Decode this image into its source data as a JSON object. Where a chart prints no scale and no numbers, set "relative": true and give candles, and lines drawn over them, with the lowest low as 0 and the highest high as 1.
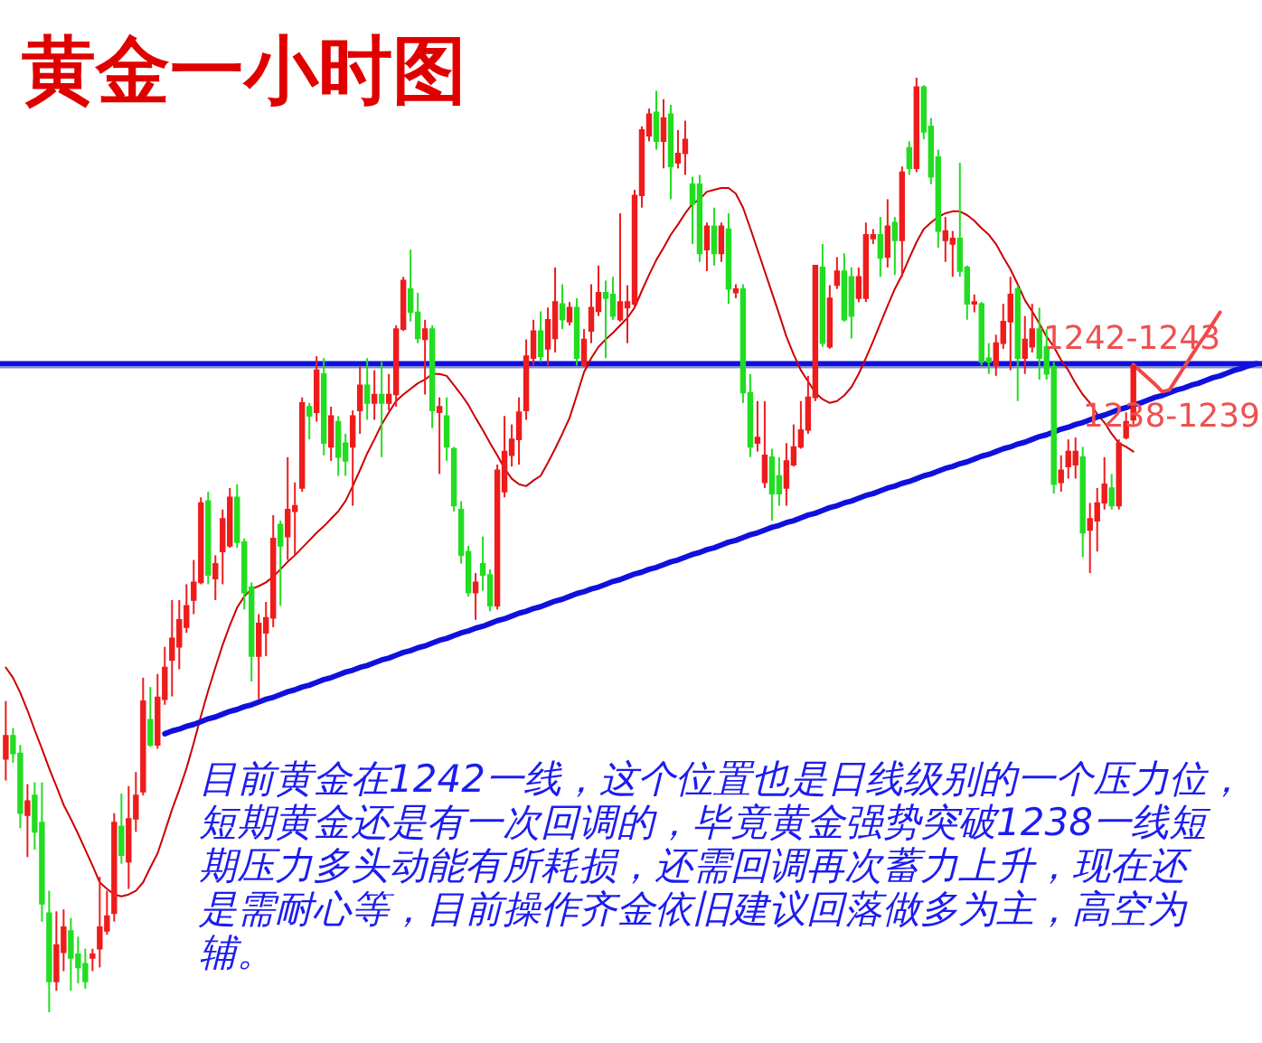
{
  "chart_data": {
    "type": "candlestick",
    "title": "黄金一小时图",
    "relative": true,
    "tick_labels": false,
    "categories": [
      null,
      null,
      null,
      null,
      null,
      null,
      null,
      null,
      null,
      null,
      null,
      null,
      null,
      null,
      null,
      null,
      null,
      null,
      null,
      null,
      null,
      null,
      null,
      null,
      null,
      null,
      null,
      null,
      null,
      null,
      null,
      null,
      null,
      null,
      null,
      null,
      null,
      null,
      null,
      null,
      null,
      null,
      null,
      null,
      null,
      null,
      null,
      null,
      null,
      null,
      null,
      null,
      null,
      null,
      null,
      null,
      null,
      null,
      null,
      null,
      null,
      null,
      null,
      null,
      null,
      null,
      null,
      null,
      null,
      null,
      null,
      null,
      null,
      null,
      null,
      null,
      null,
      null,
      null,
      null,
      null,
      null,
      null,
      null,
      null,
      null,
      null,
      null,
      null,
      null,
      null,
      null,
      null,
      null,
      null,
      null,
      null,
      null,
      null,
      null,
      null,
      null,
      null,
      null,
      null,
      null,
      null,
      null,
      null,
      null,
      null,
      null,
      null,
      null,
      null,
      null,
      null,
      null,
      null,
      null,
      null,
      null,
      null,
      null,
      null,
      null,
      null,
      null,
      null,
      null,
      null,
      null,
      null,
      null,
      null,
      null,
      null,
      null,
      null,
      null,
      null,
      null,
      null,
      null,
      null,
      null,
      null,
      null,
      null,
      null,
      null,
      null,
      null,
      null,
      null,
      null,
      null,
      null,
      null,
      null,
      null,
      null,
      null,
      null,
      null,
      null,
      null,
      null,
      null,
      null,
      null,
      null,
      null,
      null
    ],
    "ohlc": [
      [
        0.271,
        0.333,
        0.248,
        0.296
      ],
      [
        0.296,
        0.304,
        0.267,
        0.277
      ],
      [
        0.277,
        0.286,
        0.197,
        0.213
      ],
      [
        0.211,
        0.244,
        0.166,
        0.226
      ],
      [
        0.232,
        0.246,
        0.174,
        0.193
      ],
      [
        0.203,
        0.246,
        0.097,
        0.116
      ],
      [
        0.106,
        0.13,
        0.0,
        0.033
      ],
      [
        0.033,
        0.108,
        0.023,
        0.072
      ],
      [
        0.064,
        0.11,
        0.044,
        0.091
      ],
      [
        0.087,
        0.101,
        0.023,
        0.058
      ],
      [
        0.062,
        0.081,
        0.031,
        0.048
      ],
      [
        0.052,
        0.068,
        0.025,
        0.033
      ],
      [
        0.058,
        0.068,
        0.044,
        0.062
      ],
      [
        0.068,
        0.145,
        0.048,
        0.091
      ],
      [
        0.087,
        0.13,
        0.083,
        0.103
      ],
      [
        0.106,
        0.213,
        0.097,
        0.203
      ],
      [
        0.199,
        0.234,
        0.159,
        0.168
      ],
      [
        0.161,
        0.242,
        0.132,
        0.207
      ],
      [
        0.207,
        0.257,
        0.193,
        0.232
      ],
      [
        0.236,
        0.358,
        0.232,
        0.333
      ],
      [
        0.313,
        0.348,
        0.284,
        0.286
      ],
      [
        0.286,
        0.362,
        0.282,
        0.337
      ],
      [
        0.335,
        0.391,
        0.329,
        0.369
      ],
      [
        0.377,
        0.441,
        0.338,
        0.4
      ],
      [
        0.391,
        0.441,
        0.367,
        0.42
      ],
      [
        0.412,
        0.458,
        0.406,
        0.435
      ],
      [
        0.441,
        0.484,
        0.426,
        0.46
      ],
      [
        0.46,
        0.551,
        0.458,
        0.545
      ],
      [
        0.547,
        0.557,
        0.458,
        0.468
      ],
      [
        0.464,
        0.489,
        0.441,
        0.48
      ],
      [
        0.493,
        0.538,
        0.458,
        0.528
      ],
      [
        0.499,
        0.561,
        0.497,
        0.551
      ],
      [
        0.551,
        0.565,
        0.497,
        0.503
      ],
      [
        0.503,
        0.507,
        0.431,
        0.449
      ],
      [
        0.455,
        0.46,
        0.354,
        0.381
      ],
      [
        0.381,
        0.426,
        0.335,
        0.416
      ],
      [
        0.406,
        0.439,
        0.381,
        0.422
      ],
      [
        0.422,
        0.532,
        0.412,
        0.507
      ],
      [
        0.522,
        0.526,
        0.435,
        0.499
      ],
      [
        0.509,
        0.594,
        0.484,
        0.538
      ],
      [
        0.536,
        0.567,
        0.489,
        0.542
      ],
      [
        0.561,
        0.658,
        0.557,
        0.652
      ],
      [
        0.648,
        0.652,
        0.613,
        0.638
      ],
      [
        0.642,
        0.702,
        0.632,
        0.687
      ],
      [
        0.683,
        0.7,
        0.596,
        0.609
      ],
      [
        0.605,
        0.648,
        0.59,
        0.638
      ],
      [
        0.632,
        0.638,
        0.574,
        0.594
      ],
      [
        0.609,
        0.619,
        0.574,
        0.59
      ],
      [
        0.605,
        0.644,
        0.542,
        0.638
      ],
      [
        0.644,
        0.691,
        0.619,
        0.671
      ],
      [
        0.671,
        0.7,
        0.634,
        0.652
      ],
      [
        0.652,
        0.687,
        0.634,
        0.661
      ],
      [
        0.661,
        0.696,
        0.594,
        0.652
      ],
      [
        0.652,
        0.683,
        0.644,
        0.661
      ],
      [
        0.661,
        0.735,
        0.648,
        0.731
      ],
      [
        0.731,
        0.787,
        0.729,
        0.783
      ],
      [
        0.774,
        0.816,
        0.739,
        0.749
      ],
      [
        0.749,
        0.77,
        0.716,
        0.721
      ],
      [
        0.72,
        0.741,
        0.661,
        0.731
      ],
      [
        0.731,
        0.735,
        0.625,
        0.644
      ],
      [
        0.642,
        0.658,
        0.576,
        0.648
      ],
      [
        0.638,
        0.658,
        0.59,
        0.605
      ],
      [
        0.603,
        0.605,
        0.536,
        0.542
      ],
      [
        0.538,
        0.547,
        0.48,
        0.489
      ],
      [
        0.493,
        0.499,
        0.445,
        0.449
      ],
      [
        0.449,
        0.47,
        0.42,
        0.46
      ],
      [
        0.48,
        0.509,
        0.451,
        0.468
      ],
      [
        0.468,
        0.474,
        0.429,
        0.435
      ],
      [
        0.435,
        0.586,
        0.431,
        0.58
      ],
      [
        0.557,
        0.638,
        0.551,
        0.6
      ],
      [
        0.596,
        0.629,
        0.584,
        0.613
      ],
      [
        0.613,
        0.658,
        0.586,
        0.642
      ],
      [
        0.644,
        0.72,
        0.634,
        0.702
      ],
      [
        0.7,
        0.741,
        0.692,
        0.729
      ],
      [
        0.729,
        0.75,
        0.696,
        0.702
      ],
      [
        0.71,
        0.754,
        0.692,
        0.741
      ],
      [
        0.721,
        0.797,
        0.706,
        0.76
      ],
      [
        0.758,
        0.779,
        0.731,
        0.741
      ],
      [
        0.739,
        0.76,
        0.735,
        0.754
      ],
      [
        0.754,
        0.764,
        0.692,
        0.7
      ],
      [
        0.692,
        0.731,
        0.691,
        0.72
      ],
      [
        0.729,
        0.779,
        0.716,
        0.754
      ],
      [
        0.75,
        0.799,
        0.745,
        0.77
      ],
      [
        0.77,
        0.783,
        0.7,
        0.764
      ],
      [
        0.768,
        0.787,
        0.741,
        0.745
      ],
      [
        0.741,
        0.855,
        0.739,
        0.76
      ],
      [
        0.754,
        0.778,
        0.716,
        0.76
      ],
      [
        0.758,
        0.88,
        0.754,
        0.874
      ],
      [
        0.874,
        0.948,
        0.861,
        0.944
      ],
      [
        0.938,
        0.967,
        0.932,
        0.961
      ],
      [
        0.963,
        0.986,
        0.923,
        0.932
      ],
      [
        0.932,
        0.977,
        0.903,
        0.957
      ],
      [
        0.961,
        0.971,
        0.87,
        0.905
      ],
      [
        0.909,
        0.944,
        0.903,
        0.919
      ],
      [
        0.919,
        0.954,
        0.896,
        0.934
      ],
      [
        0.886,
        0.894,
        0.822,
        0.865
      ],
      [
        0.886,
        0.896,
        0.803,
        0.812
      ],
      [
        0.816,
        0.845,
        0.793,
        0.841
      ],
      [
        0.841,
        0.861,
        0.799,
        0.812
      ],
      [
        0.812,
        0.845,
        0.803,
        0.841
      ],
      [
        0.838,
        0.855,
        0.758,
        0.774
      ],
      [
        0.77,
        0.779,
        0.764,
        0.774
      ],
      [
        0.774,
        0.779,
        0.652,
        0.663
      ],
      [
        0.663,
        0.683,
        0.594,
        0.605
      ],
      [
        0.609,
        0.654,
        0.6,
        0.615
      ],
      [
        0.567,
        0.654,
        0.561,
        0.596
      ],
      [
        0.594,
        0.603,
        0.526,
        0.555
      ],
      [
        0.574,
        0.594,
        0.542,
        0.555
      ],
      [
        0.561,
        0.609,
        0.542,
        0.59
      ],
      [
        0.586,
        0.629,
        0.584,
        0.605
      ],
      [
        0.605,
        0.654,
        0.603,
        0.623
      ],
      [
        0.623,
        0.681,
        0.619,
        0.658
      ],
      [
        0.658,
        0.799,
        0.654,
        0.799
      ],
      [
        0.797,
        0.822,
        0.712,
        0.716
      ],
      [
        0.712,
        0.778,
        0.71,
        0.764
      ],
      [
        0.778,
        0.808,
        0.774,
        0.793
      ],
      [
        0.793,
        0.812,
        0.739,
        0.741
      ],
      [
        0.787,
        0.797,
        0.721,
        0.745
      ],
      [
        0.764,
        0.797,
        0.76,
        0.787
      ],
      [
        0.764,
        0.845,
        0.76,
        0.832
      ],
      [
        0.828,
        0.838,
        0.822,
        0.832
      ],
      [
        0.832,
        0.851,
        0.787,
        0.807
      ],
      [
        0.808,
        0.87,
        0.797,
        0.841
      ],
      [
        0.845,
        0.851,
        0.789,
        0.826
      ],
      [
        0.826,
        0.905,
        0.787,
        0.899
      ],
      [
        0.925,
        0.932,
        0.896,
        0.903
      ],
      [
        0.903,
        1.0,
        0.899,
        0.99
      ],
      [
        0.99,
        0.992,
        0.934,
        0.942
      ],
      [
        0.948,
        0.957,
        0.886,
        0.894
      ],
      [
        0.915,
        0.923,
        0.818,
        0.836
      ],
      [
        0.826,
        0.851,
        0.803,
        0.836
      ],
      [
        0.822,
        0.836,
        0.787,
        0.828
      ],
      [
        0.828,
        0.909,
        0.787,
        0.793
      ],
      [
        0.797,
        0.799,
        0.741,
        0.758
      ],
      [
        0.758,
        0.768,
        0.749,
        0.76
      ],
      [
        0.758,
        0.76,
        0.692,
        0.696
      ],
      [
        0.7,
        0.716,
        0.683,
        0.696
      ],
      [
        0.692,
        0.725,
        0.681,
        0.716
      ],
      [
        0.716,
        0.758,
        0.71,
        0.739
      ],
      [
        0.739,
        0.787,
        0.687,
        0.768
      ],
      [
        0.774,
        0.778,
        0.654,
        0.7
      ],
      [
        0.7,
        0.745,
        0.683,
        0.72
      ],
      [
        0.712,
        0.758,
        0.706,
        0.731
      ],
      [
        0.731,
        0.754,
        0.677,
        0.7
      ],
      [
        0.712,
        0.731,
        0.677,
        0.683
      ],
      [
        0.691,
        0.696,
        0.555,
        0.565
      ],
      [
        0.567,
        0.596,
        0.557,
        0.58
      ],
      [
        0.584,
        0.613,
        0.571,
        0.6
      ],
      [
        0.586,
        0.615,
        0.571,
        0.6
      ],
      [
        0.594,
        0.605,
        0.487,
        0.513
      ],
      [
        0.516,
        0.545,
        0.47,
        0.528
      ],
      [
        0.526,
        0.561,
        0.493,
        0.545
      ],
      [
        0.545,
        0.594,
        0.538,
        0.565
      ],
      [
        0.561,
        0.576,
        0.538,
        0.542
      ],
      [
        0.542,
        0.613,
        0.538,
        0.609
      ],
      [
        0.615,
        0.642,
        0.613,
        0.632
      ],
      [
        0.634,
        0.692,
        0.629,
        0.692
      ],
      null,
      null,
      null,
      null,
      null,
      null,
      null,
      null,
      null,
      null,
      null,
      null,
      null,
      null,
      null,
      null,
      null
    ],
    "colors": [
      "#ee1c1c",
      "#22dd22",
      "#22dd22",
      "#ee1c1c",
      "#22dd22",
      "#22dd22",
      "#22dd22",
      "#ee1c1c",
      "#ee1c1c",
      "#22dd22",
      "#22dd22",
      "#22dd22",
      "#ee1c1c",
      "#ee1c1c",
      "#ee1c1c",
      "#ee1c1c",
      "#22dd22",
      "#ee1c1c",
      "#ee1c1c",
      "#ee1c1c",
      "#22dd22",
      "#ee1c1c",
      "#ee1c1c",
      "#ee1c1c",
      "#ee1c1c",
      "#ee1c1c",
      "#ee1c1c",
      "#ee1c1c",
      "#22dd22",
      "#ee1c1c",
      "#ee1c1c",
      "#ee1c1c",
      "#22dd22",
      "#22dd22",
      "#22dd22",
      "#ee1c1c",
      "#ee1c1c",
      "#ee1c1c",
      "#22dd22",
      "#ee1c1c",
      "#ee1c1c",
      "#ee1c1c",
      "#22dd22",
      "#ee1c1c",
      "#22dd22",
      "#ee1c1c",
      "#22dd22",
      "#22dd22",
      "#ee1c1c",
      "#ee1c1c",
      "#22dd22",
      "#ee1c1c",
      "#22dd22",
      "#ee1c1c",
      "#ee1c1c",
      "#ee1c1c",
      "#22dd22",
      "#22dd22",
      "#ee1c1c",
      "#22dd22",
      "#ee1c1c",
      "#22dd22",
      "#22dd22",
      "#22dd22",
      "#22dd22",
      "#ee1c1c",
      "#22dd22",
      "#22dd22",
      "#ee1c1c",
      "#ee1c1c",
      "#ee1c1c",
      "#ee1c1c",
      "#ee1c1c",
      "#ee1c1c",
      "#22dd22",
      "#ee1c1c",
      "#ee1c1c",
      "#22dd22",
      "#ee1c1c",
      "#22dd22",
      "#ee1c1c",
      "#ee1c1c",
      "#ee1c1c",
      "#22dd22",
      "#22dd22",
      "#ee1c1c",
      "#ee1c1c",
      "#ee1c1c",
      "#ee1c1c",
      "#ee1c1c",
      "#22dd22",
      "#ee1c1c",
      "#22dd22",
      "#ee1c1c",
      "#ee1c1c",
      "#22dd22",
      "#22dd22",
      "#ee1c1c",
      "#22dd22",
      "#ee1c1c",
      "#22dd22",
      "#ee1c1c",
      "#22dd22",
      "#22dd22",
      "#ee1c1c",
      "#ee1c1c",
      "#22dd22",
      "#22dd22",
      "#ee1c1c",
      "#ee1c1c",
      "#ee1c1c",
      "#ee1c1c",
      "#ee1c1c",
      "#22dd22",
      "#ee1c1c",
      "#ee1c1c",
      "#22dd22",
      "#22dd22",
      "#ee1c1c",
      "#ee1c1c",
      "#ee1c1c",
      "#22dd22",
      "#ee1c1c",
      "#22dd22",
      "#ee1c1c",
      "#22dd22",
      "#ee1c1c",
      "#22dd22",
      "#22dd22",
      "#22dd22",
      "#ee1c1c",
      "#ee1c1c",
      "#22dd22",
      "#22dd22",
      "#ee1c1c",
      "#22dd22",
      "#22dd22",
      "#ee1c1c",
      "#ee1c1c",
      "#ee1c1c",
      "#22dd22",
      "#ee1c1c",
      "#ee1c1c",
      "#22dd22",
      "#22dd22",
      "#22dd22",
      "#ee1c1c",
      "#ee1c1c",
      "#ee1c1c",
      "#22dd22",
      "#ee1c1c",
      "#ee1c1c",
      "#ee1c1c",
      "#22dd22",
      "#ee1c1c",
      "#ee1c1c",
      "#ee1c1c",
      null,
      null,
      null,
      null,
      null,
      null,
      null,
      null,
      null,
      null,
      null,
      null,
      null,
      null,
      null,
      null,
      null
    ],
    "series": [
      {
        "type": "line",
        "color": "#cc0000",
        "values": [
          0.369,
          0.358,
          0.342,
          0.323,
          0.302,
          0.282,
          0.261,
          0.242,
          0.222,
          0.207,
          0.191,
          0.174,
          0.157,
          0.139,
          0.132,
          0.126,
          0.124,
          0.126,
          0.13,
          0.139,
          0.155,
          0.17,
          0.193,
          0.217,
          0.238,
          0.261,
          0.288,
          0.317,
          0.344,
          0.369,
          0.393,
          0.414,
          0.433,
          0.445,
          0.453,
          0.456,
          0.46,
          0.466,
          0.474,
          0.482,
          0.489,
          0.497,
          0.505,
          0.513,
          0.52,
          0.528,
          0.536,
          0.547,
          0.563,
          0.58,
          0.598,
          0.613,
          0.629,
          0.642,
          0.654,
          0.661,
          0.667,
          0.673,
          0.677,
          0.683,
          0.683,
          0.681,
          0.671,
          0.661,
          0.65,
          0.636,
          0.623,
          0.609,
          0.596,
          0.582,
          0.571,
          0.565,
          0.563,
          0.569,
          0.574,
          0.588,
          0.603,
          0.619,
          0.636,
          0.66,
          0.685,
          0.7,
          0.712,
          0.72,
          0.727,
          0.735,
          0.743,
          0.754,
          0.772,
          0.789,
          0.805,
          0.818,
          0.832,
          0.843,
          0.855,
          0.865,
          0.87,
          0.878,
          0.88,
          0.882,
          0.882,
          0.876,
          0.861,
          0.839,
          0.816,
          0.793,
          0.77,
          0.747,
          0.723,
          0.704,
          0.687,
          0.675,
          0.663,
          0.656,
          0.652,
          0.654,
          0.66,
          0.669,
          0.683,
          0.7,
          0.718,
          0.737,
          0.756,
          0.774,
          0.789,
          0.807,
          0.824,
          0.838,
          0.845,
          0.851,
          0.855,
          0.857,
          0.857,
          0.853,
          0.847,
          0.839,
          0.832,
          0.822,
          0.808,
          0.795,
          0.779,
          0.762,
          0.75,
          0.737,
          0.723,
          0.712,
          0.698,
          0.687,
          0.673,
          0.661,
          0.652,
          0.64,
          0.631,
          0.619,
          0.609,
          0.605,
          0.6,
          null,
          null,
          null,
          null,
          null,
          null,
          null,
          null,
          null,
          null,
          null,
          null,
          null,
          null,
          null,
          null,
          null
        ]
      },
      {
        "type": "line",
        "color": "#1010dd",
        "values": [
          null,
          null,
          null,
          null,
          null,
          null,
          null,
          null,
          null,
          null,
          null,
          null,
          null,
          null,
          null,
          null,
          null,
          null,
          null,
          null,
          null,
          null,
          0.298,
          0.301,
          0.303,
          0.306,
          0.308,
          0.311,
          0.314,
          0.316,
          0.319,
          0.322,
          0.324,
          0.327,
          0.329,
          0.332,
          0.335,
          0.337,
          0.34,
          0.343,
          0.345,
          0.348,
          0.35,
          0.353,
          0.356,
          0.358,
          0.361,
          0.364,
          0.366,
          0.369,
          0.371,
          0.374,
          0.377,
          0.379,
          0.382,
          0.385,
          0.387,
          0.39,
          0.392,
          0.395,
          0.398,
          0.4,
          0.403,
          0.406,
          0.408,
          0.411,
          0.413,
          0.416,
          0.419,
          0.421,
          0.424,
          0.427,
          0.429,
          0.432,
          0.434,
          0.437,
          0.44,
          0.442,
          0.445,
          0.448,
          0.45,
          0.453,
          0.455,
          0.458,
          0.461,
          0.463,
          0.466,
          0.469,
          0.471,
          0.474,
          0.476,
          0.479,
          0.482,
          0.484,
          0.487,
          0.49,
          0.492,
          0.495,
          0.497,
          0.5,
          0.503,
          0.505,
          0.508,
          0.511,
          0.513,
          0.516,
          0.519,
          0.521,
          0.524,
          0.526,
          0.529,
          0.532,
          0.534,
          0.537,
          0.54,
          0.542,
          0.545,
          0.547,
          0.55,
          0.553,
          0.555,
          0.558,
          0.561,
          0.563,
          0.566,
          0.568,
          0.571,
          0.574,
          0.576,
          0.579,
          0.582,
          0.584,
          0.587,
          0.589,
          0.592,
          0.595,
          0.597,
          0.6,
          0.603,
          0.605,
          0.608,
          0.61,
          0.613,
          0.616,
          0.618,
          0.621,
          0.624,
          0.626,
          0.629,
          0.631,
          0.634,
          0.637,
          0.639,
          0.642,
          0.645,
          0.647,
          0.65,
          0.652,
          0.655,
          0.658,
          0.66,
          0.663,
          0.666,
          0.668,
          0.671,
          0.673,
          0.676,
          0.679,
          0.681,
          0.684,
          0.687,
          0.689,
          0.692,
          0.694
        ]
      },
      {
        "type": "line",
        "color": "#f04848",
        "values": [
          null,
          null,
          null,
          null,
          null,
          null,
          null,
          null,
          null,
          null,
          null,
          null,
          null,
          null,
          null,
          null,
          null,
          null,
          null,
          null,
          null,
          null,
          null,
          null,
          null,
          null,
          null,
          null,
          null,
          null,
          null,
          null,
          null,
          null,
          null,
          null,
          null,
          null,
          null,
          null,
          null,
          null,
          null,
          null,
          null,
          null,
          null,
          null,
          null,
          null,
          null,
          null,
          null,
          null,
          null,
          null,
          null,
          null,
          null,
          null,
          null,
          null,
          null,
          null,
          null,
          null,
          null,
          null,
          null,
          null,
          null,
          null,
          null,
          null,
          null,
          null,
          null,
          null,
          null,
          null,
          null,
          null,
          null,
          null,
          null,
          null,
          null,
          null,
          null,
          null,
          null,
          null,
          null,
          null,
          null,
          null,
          null,
          null,
          null,
          null,
          null,
          null,
          null,
          null,
          null,
          null,
          null,
          null,
          null,
          null,
          null,
          null,
          null,
          null,
          null,
          null,
          null,
          null,
          null,
          null,
          null,
          null,
          null,
          null,
          null,
          null,
          null,
          null,
          null,
          null,
          null,
          null,
          null,
          null,
          null,
          null,
          null,
          null,
          null,
          null,
          null,
          null,
          null,
          null,
          null,
          null,
          null,
          null,
          null,
          null,
          null,
          null,
          null,
          null,
          null,
          null,
          0.693,
          0.686,
          0.679,
          0.672,
          0.664,
          0.666,
          0.678,
          0.69,
          0.702,
          0.714,
          0.725,
          0.737,
          0.749,
          null,
          null,
          null,
          null,
          null
        ]
      }
    ],
    "ref_lines": [
      {
        "axis": "y",
        "value": 0.694,
        "color": "#1010dd"
      },
      {
        "axis": "y",
        "value": 0.69,
        "color": "#8090c0"
      }
    ],
    "annotations": [
      "1242-1243",
      "1238-1239",
      "目前黄金在1242一线，这个位置也是日线级别的一个压力位，短期黄金还是有一次回调的，毕竟黄金强势突破1238一线短期压力多头动能有所耗损，还需回调再次蓄力上升，现在还是需耐心等，目前操作齐金依旧建议回落做多为主，高空为辅。"
    ]
  }
}
